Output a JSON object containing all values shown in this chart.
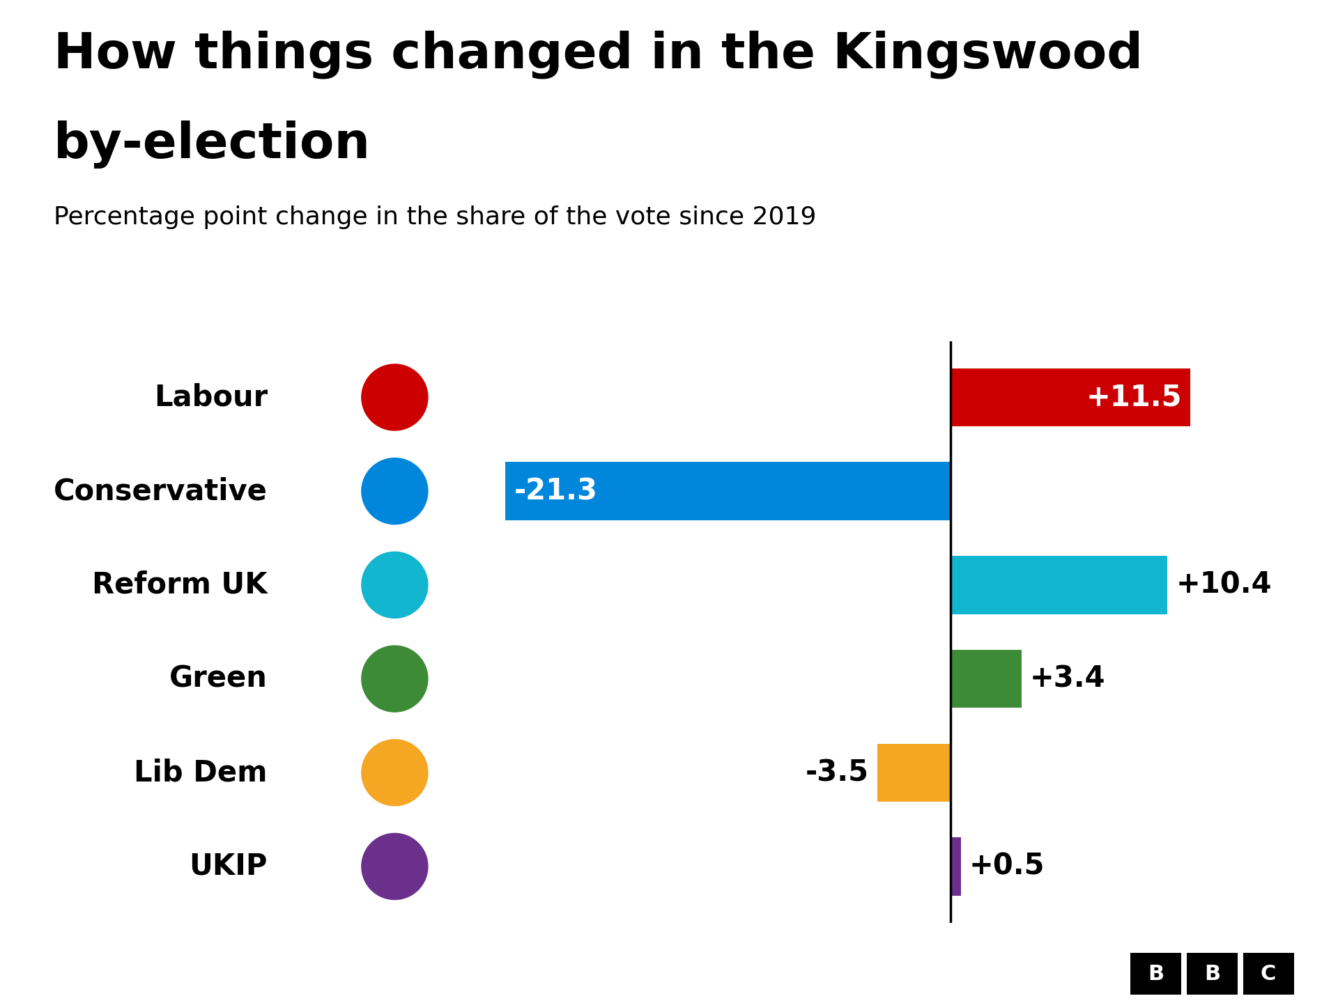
{
  "title_line1": "How things changed in the Kingswood",
  "title_line2": "by-election",
  "subtitle": "Percentage point change in the share of the vote since 2019",
  "parties": [
    "Labour",
    "Conservative",
    "Reform UK",
    "Green",
    "Lib Dem",
    "UKIP"
  ],
  "values": [
    11.5,
    -21.3,
    10.4,
    3.4,
    -3.5,
    0.5
  ],
  "colors": [
    "#cc0000",
    "#0087dc",
    "#12b6cf",
    "#3d8b37",
    "#f5a623",
    "#6b2f8c"
  ],
  "background_color": "#ffffff",
  "title_fontsize": 52,
  "subtitle_fontsize": 26,
  "bar_label_fontsize": 30,
  "party_label_fontsize": 30,
  "xlim": [
    -25,
    16
  ],
  "bar_height": 0.62,
  "value_label_inside": [
    "Labour",
    "Conservative"
  ],
  "value_label_inside_color": [
    "#ffffff",
    "#ffffff"
  ]
}
